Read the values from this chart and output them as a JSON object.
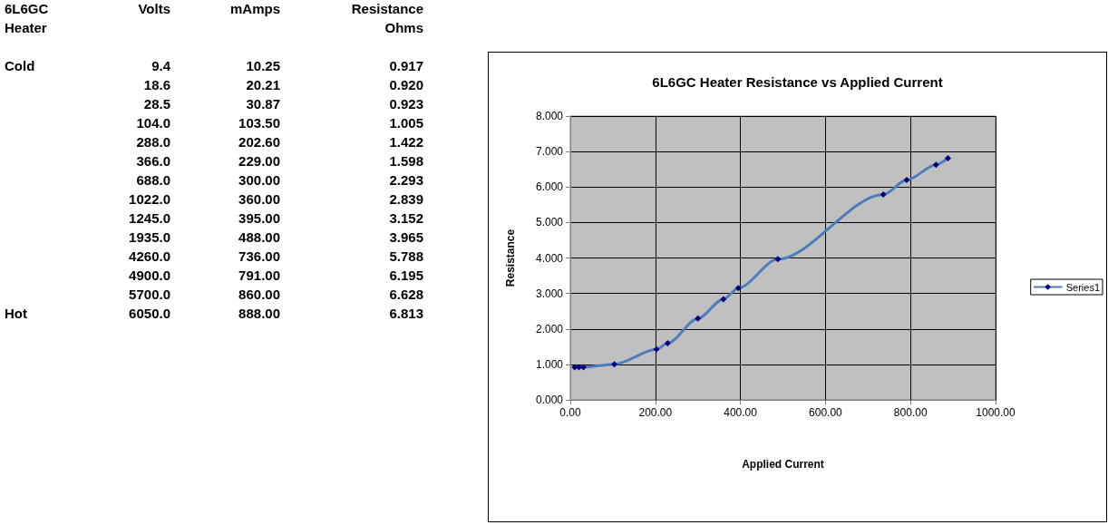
{
  "chart_data": [
    {
      "type": "other",
      "annotations": [
        "6L6GC",
        "Volts",
        "mAmps",
        "Resistance",
        "Heater",
        "Ohms",
        "Cold",
        "9.4",
        "10.25",
        "0.917",
        "18.6",
        "20.21",
        "0.920",
        "28.5",
        "30.87",
        "0.923",
        "104.0",
        "103.50",
        "1.005",
        "288.0",
        "202.60",
        "1.422",
        "366.0",
        "229.00",
        "1.598",
        "688.0",
        "300.00",
        "2.293",
        "1022.0",
        "360.00",
        "2.839",
        "1245.0",
        "395.00",
        "3.152",
        "1935.0",
        "488.00",
        "3.965",
        "4260.0",
        "736.00",
        "5.788",
        "4900.0",
        "791.00",
        "6.195",
        "5700.0",
        "860.00",
        "6.628",
        "Hot",
        "6050.0",
        "888.00",
        "6.813"
      ]
    },
    {
      "type": "line",
      "title": "6L6GC Heater Resistance vs Applied Current",
      "xlabel": "Applied Current",
      "ylabel": "Resistance",
      "series": [
        {
          "name": "Series1",
          "color": "#4a7ebb",
          "x": [
            10.25,
            20.21,
            30.87,
            103.5,
            202.6,
            229,
            300,
            360,
            395,
            488,
            736,
            791,
            860,
            888
          ],
          "values": [
            0.917,
            0.92,
            0.923,
            1.005,
            1.422,
            1.598,
            2.293,
            2.839,
            3.152,
            3.965,
            5.788,
            6.195,
            6.628,
            6.813
          ]
        }
      ],
      "xlim": [
        0,
        1000
      ],
      "xticks": [
        {
          "value": 0,
          "label": "0.00"
        },
        {
          "value": 200,
          "label": "200.00"
        },
        {
          "value": 400,
          "label": "400.00"
        },
        {
          "value": 600,
          "label": "600.00"
        },
        {
          "value": 800,
          "label": "800.00"
        },
        {
          "value": 1000,
          "label": "1000.00"
        }
      ],
      "ylim": [
        0,
        8
      ],
      "yticks": [
        {
          "value": 0,
          "label": "0.000"
        },
        {
          "value": 1,
          "label": "1.000"
        },
        {
          "value": 2,
          "label": "2.000"
        },
        {
          "value": 3,
          "label": "3.000"
        },
        {
          "value": 4,
          "label": "4.000"
        },
        {
          "value": 5,
          "label": "5.000"
        },
        {
          "value": 6,
          "label": "6.000"
        },
        {
          "value": 7,
          "label": "7.000"
        },
        {
          "value": 8,
          "label": "8.000"
        }
      ],
      "grid": true,
      "legend": "right",
      "marker": "diamond",
      "line_style": "solid"
    }
  ]
}
